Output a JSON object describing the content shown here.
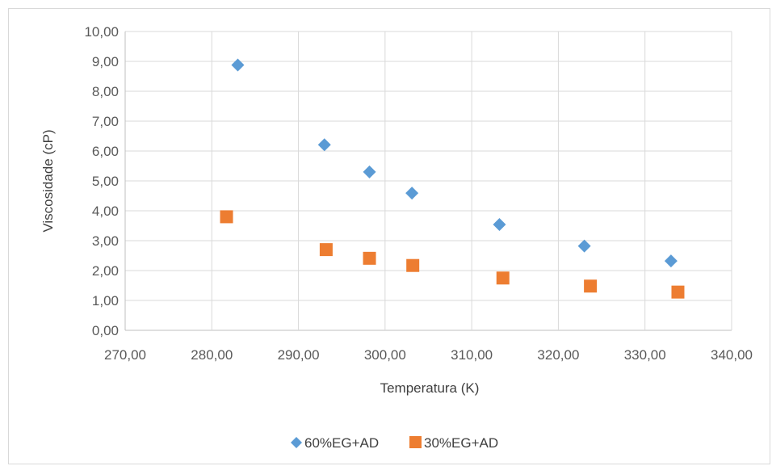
{
  "chart_data": {
    "type": "scatter",
    "title": "",
    "xlabel": "Temperatura (K)",
    "ylabel": "Viscosidade (cP)",
    "xlim": [
      270,
      340
    ],
    "ylim": [
      0,
      10
    ],
    "x_ticks": [
      "270,00",
      "280,00",
      "290,00",
      "300,00",
      "310,00",
      "320,00",
      "330,00",
      "340,00"
    ],
    "y_ticks": [
      "0,00",
      "1,00",
      "2,00",
      "3,00",
      "4,00",
      "5,00",
      "6,00",
      "7,00",
      "8,00",
      "9,00",
      "10,00"
    ],
    "grid": true,
    "legend_position": "bottom",
    "series": [
      {
        "name": "60%EG+AD",
        "marker": "diamond",
        "color": "#5b9bd5",
        "points": [
          [
            283.0,
            8.88
          ],
          [
            293.0,
            6.21
          ],
          [
            298.2,
            5.3
          ],
          [
            303.1,
            4.59
          ],
          [
            313.2,
            3.54
          ],
          [
            323.0,
            2.82
          ],
          [
            333.0,
            2.32
          ]
        ]
      },
      {
        "name": "30%EG+AD",
        "marker": "square",
        "color": "#ed7d31",
        "points": [
          [
            281.7,
            3.8
          ],
          [
            293.2,
            2.7
          ],
          [
            298.2,
            2.41
          ],
          [
            303.2,
            2.17
          ],
          [
            313.6,
            1.75
          ],
          [
            323.7,
            1.48
          ],
          [
            333.8,
            1.28
          ]
        ]
      }
    ]
  }
}
